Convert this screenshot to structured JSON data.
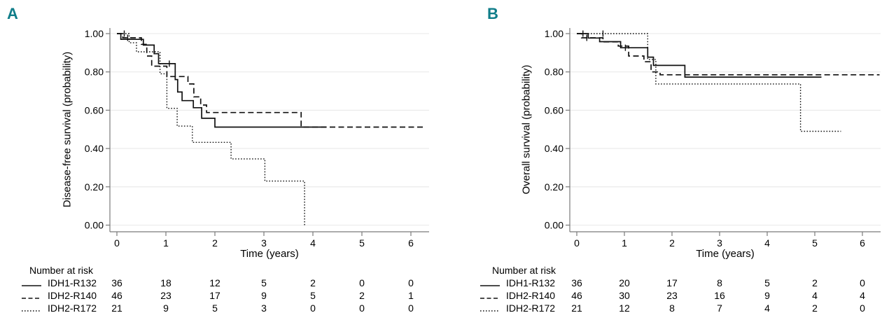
{
  "figure": {
    "background": "#ffffff",
    "accent_color": "#0F7D89",
    "curve_color": "#111111",
    "grid_color": "#e9e9e9",
    "axis_color": "#7a7a7a",
    "text_color": "#000000"
  },
  "chart_data": [
    {
      "type": "line",
      "subtype": "kaplan-meier-step",
      "panel_label": "A",
      "title": "",
      "ylabel": "Disease-free survival (probability)",
      "xlabel": "Time (years)",
      "xlim": [
        0,
        6.4
      ],
      "ylim": [
        0.0,
        1.0
      ],
      "x_ticks": [
        0,
        1,
        2,
        3,
        4,
        5,
        6
      ],
      "y_tick_labels": [
        "1.00",
        "0.80",
        "0.60",
        "0.40",
        "0.20",
        "0.00"
      ],
      "grid": "horizontal",
      "legend_position": "number-at-risk-table",
      "series": [
        {
          "name": "IDH1-R132",
          "line_style": "solid",
          "steps": [
            [
              0,
              1.0
            ],
            [
              0.08,
              0.97
            ],
            [
              0.54,
              0.94
            ],
            [
              0.76,
              0.895
            ],
            [
              0.85,
              0.843
            ],
            [
              1.19,
              0.76
            ],
            [
              1.24,
              0.695
            ],
            [
              1.33,
              0.65
            ],
            [
              1.56,
              0.613
            ],
            [
              1.73,
              0.558
            ],
            [
              2.0,
              0.512
            ],
            [
              4.28,
              0.512
            ]
          ],
          "censor_ticks": [
            [
              0.15,
              1.0
            ],
            [
              1.07,
              0.843
            ]
          ]
        },
        {
          "name": "IDH2-R140",
          "line_style": "dashed",
          "steps": [
            [
              0,
              1.0
            ],
            [
              0.12,
              0.978
            ],
            [
              0.5,
              0.944
            ],
            [
              0.61,
              0.883
            ],
            [
              0.71,
              0.83
            ],
            [
              1.02,
              0.776
            ],
            [
              1.45,
              0.737
            ],
            [
              1.57,
              0.67
            ],
            [
              1.71,
              0.627
            ],
            [
              1.83,
              0.588
            ],
            [
              3.76,
              0.512
            ],
            [
              6.25,
              0.512
            ]
          ],
          "censor_ticks": [
            [
              0.22,
              0.978
            ]
          ]
        },
        {
          "name": "IDH2-R172",
          "line_style": "dotted",
          "steps": [
            [
              0,
              1.0
            ],
            [
              0.25,
              0.952
            ],
            [
              0.4,
              0.905
            ],
            [
              0.88,
              0.79
            ],
            [
              1.02,
              0.61
            ],
            [
              1.23,
              0.517
            ],
            [
              1.54,
              0.432
            ],
            [
              2.33,
              0.346
            ],
            [
              3.02,
              0.23
            ],
            [
              3.83,
              0.0
            ]
          ],
          "censor_ticks": []
        }
      ],
      "number_at_risk": {
        "title": "Number at risk",
        "times": [
          0,
          1,
          2,
          3,
          4,
          5,
          6
        ],
        "rows": [
          {
            "name": "IDH1-R132",
            "line_style": "solid",
            "counts": [
              36,
              18,
              12,
              5,
              2,
              0,
              0
            ]
          },
          {
            "name": "IDH2-R140",
            "line_style": "dashed",
            "counts": [
              46,
              23,
              17,
              9,
              5,
              2,
              1
            ]
          },
          {
            "name": "IDH2-R172",
            "line_style": "dotted",
            "counts": [
              21,
              9,
              5,
              3,
              0,
              0,
              0
            ]
          }
        ]
      }
    },
    {
      "type": "line",
      "subtype": "kaplan-meier-step",
      "panel_label": "B",
      "title": "",
      "ylabel": "Overall survival (probability)",
      "xlabel": "Time (years)",
      "xlim": [
        0,
        6.5
      ],
      "ylim": [
        0.0,
        1.0
      ],
      "x_ticks": [
        0,
        1,
        2,
        3,
        4,
        5,
        6
      ],
      "y_tick_labels": [
        "1.00",
        "0.80",
        "0.60",
        "0.40",
        "0.20",
        "0.00"
      ],
      "grid": "horizontal",
      "legend_position": "number-at-risk-table",
      "series": [
        {
          "name": "IDH1-R132",
          "line_style": "solid",
          "steps": [
            [
              0,
              1.0
            ],
            [
              0.24,
              0.977
            ],
            [
              0.48,
              0.958
            ],
            [
              0.92,
              0.926
            ],
            [
              1.49,
              0.877
            ],
            [
              1.61,
              0.834
            ],
            [
              2.27,
              0.773
            ],
            [
              5.14,
              0.773
            ]
          ],
          "censor_ticks": [
            [
              0.13,
              1.0
            ],
            [
              1.02,
              0.926
            ]
          ]
        },
        {
          "name": "IDH2-R140",
          "line_style": "dashed",
          "steps": [
            [
              0,
              1.0
            ],
            [
              0.1,
              0.978
            ],
            [
              0.55,
              0.957
            ],
            [
              0.87,
              0.935
            ],
            [
              1.09,
              0.883
            ],
            [
              1.41,
              0.853
            ],
            [
              1.56,
              0.8
            ],
            [
              1.75,
              0.785
            ],
            [
              6.36,
              0.785
            ]
          ],
          "censor_ticks": [
            [
              0.21,
              0.978
            ]
          ]
        },
        {
          "name": "IDH2-R172",
          "line_style": "dotted",
          "steps": [
            [
              0,
              1.0
            ],
            [
              1.49,
              0.865
            ],
            [
              1.66,
              0.737
            ],
            [
              4.7,
              0.49
            ],
            [
              5.55,
              0.49
            ]
          ],
          "censor_ticks": [
            [
              0.55,
              1.0
            ]
          ]
        }
      ],
      "number_at_risk": {
        "title": "Number at risk",
        "times": [
          0,
          1,
          2,
          3,
          4,
          5,
          6
        ],
        "rows": [
          {
            "name": "IDH1-R132",
            "line_style": "solid",
            "counts": [
              36,
              20,
              17,
              8,
              5,
              2,
              0
            ]
          },
          {
            "name": "IDH2-R140",
            "line_style": "dashed",
            "counts": [
              46,
              30,
              23,
              16,
              9,
              4,
              4
            ]
          },
          {
            "name": "IDH2-R172",
            "line_style": "dotted",
            "counts": [
              21,
              12,
              8,
              7,
              4,
              2,
              0
            ]
          }
        ]
      }
    }
  ]
}
